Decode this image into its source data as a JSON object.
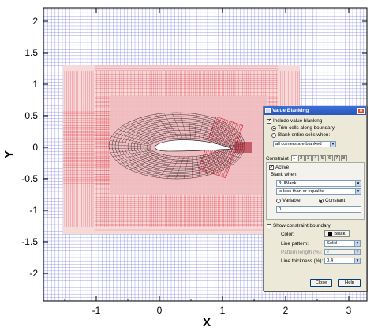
{
  "plot": {
    "x_axis_label": "X",
    "y_axis_label": "Y",
    "x_ticks": [
      "-1",
      "0",
      "1",
      "2",
      "3"
    ],
    "y_ticks": [
      "2",
      "1.5",
      "1",
      "0.5",
      "0",
      "-0.5",
      "-1",
      "-1.5",
      "-2"
    ],
    "colors": {
      "background_mesh": "#7878e0",
      "refined_mesh": "#e02030",
      "refined_fill": "#f6dada",
      "inner_fill": "#f3e7e7",
      "airfoil_mesh": "#000000",
      "airfoil": "#ffffff"
    }
  },
  "dialog": {
    "title": "Value Blanking",
    "include_value_blanking": "Include value blanking",
    "trim_cells": "Trim cells along boundary",
    "blank_entire": "Blank entire cells when:",
    "corners_option": "all corners are blanked",
    "constraint_label": "Constraint",
    "constraint_tabs": [
      "1",
      "2",
      "3",
      "4",
      "5",
      "6",
      "7",
      "8"
    ],
    "active_label": "Active",
    "blank_when_label": "Blank when",
    "variable_option": "3: IBlank",
    "condition_option": "is less than or equal to",
    "variable_radio": "Variable",
    "constant_radio": "Constant",
    "constant_value": "0",
    "show_boundary": "Show constraint boundary",
    "color_label": "Color:",
    "color_value": "Black",
    "line_pattern_label": "Line pattern:",
    "line_pattern_value": "Solid",
    "pattern_length_label": "Pattern length (%):",
    "pattern_length_value": "2",
    "line_thickness_label": "Line thickness (%):",
    "line_thickness_value": "0.4",
    "close_button": "Close",
    "help_button": "Help"
  }
}
